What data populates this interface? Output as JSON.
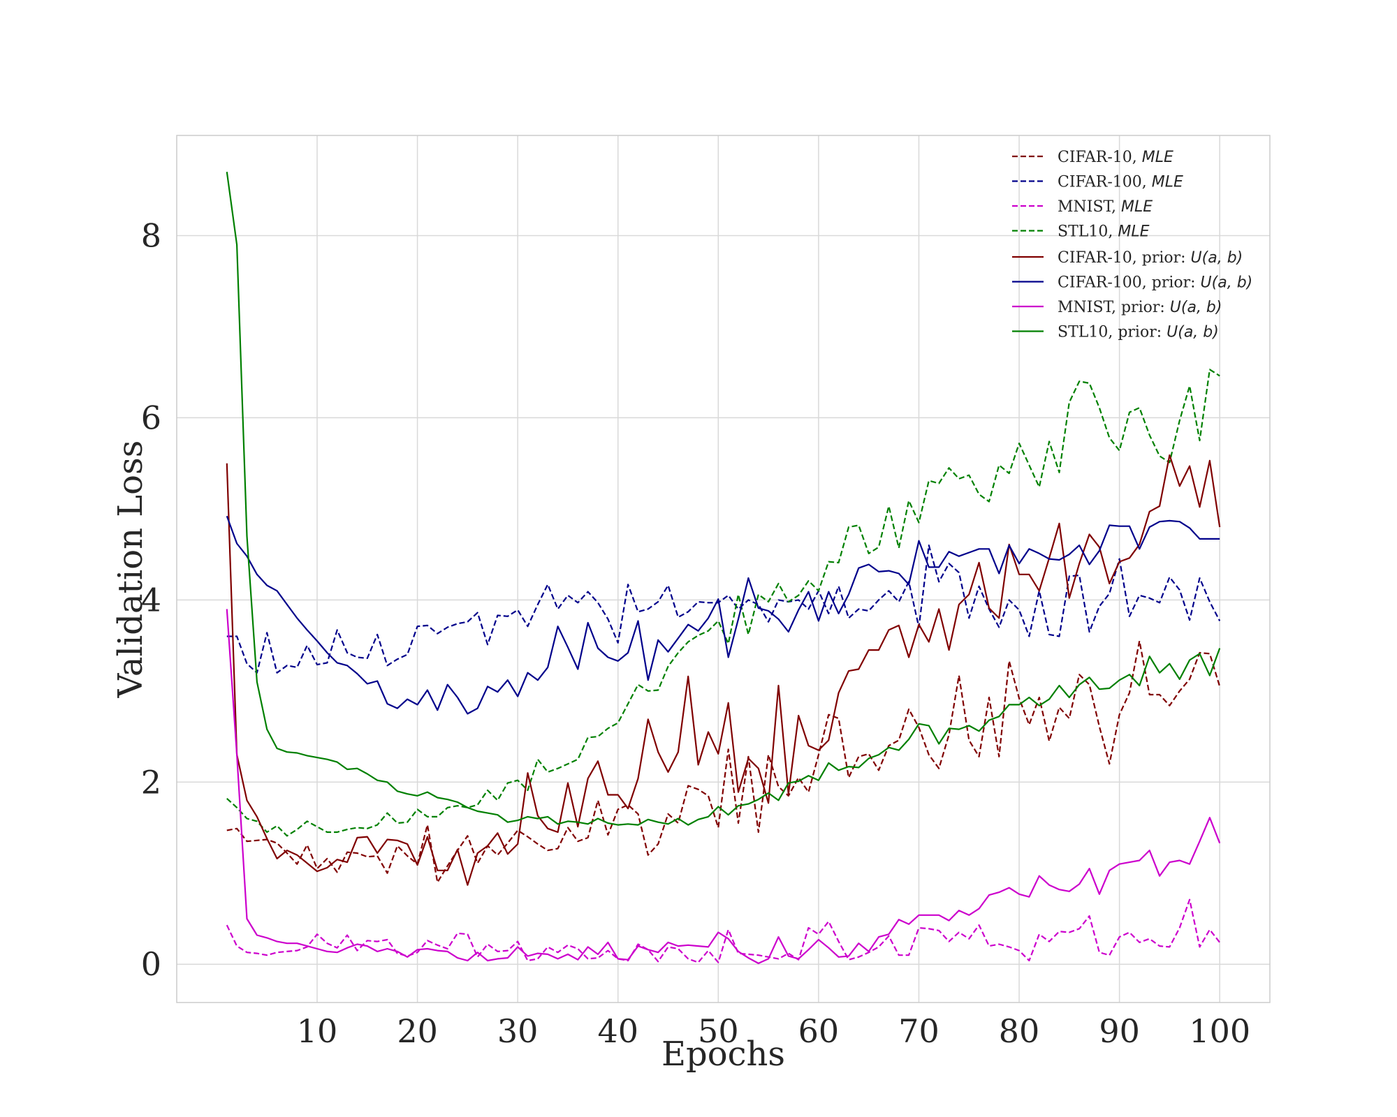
{
  "chart_data": {
    "type": "line",
    "title": "",
    "xlabel": "Epochs",
    "ylabel": "Validation Loss",
    "xlim": [
      -4,
      105
    ],
    "ylim": [
      -0.42,
      9.1
    ],
    "xticks": [
      10,
      20,
      30,
      40,
      50,
      60,
      70,
      80,
      90,
      100
    ],
    "yticks": [
      0,
      2,
      4,
      6,
      8
    ],
    "grid": true,
    "legend_position": "top-right",
    "x_start": 1,
    "x_end": 100,
    "series": [
      {
        "name": "CIFAR-10, MLE",
        "name_plain": "CIFAR-10, ",
        "name_tag": "MLE",
        "color": "#800000",
        "style": "dashed",
        "values": [
          1.47,
          1.49,
          1.35,
          1.36,
          1.37,
          1.33,
          1.22,
          1.1,
          1.31,
          1.05,
          1.16,
          1.01,
          1.23,
          1.22,
          1.18,
          1.19,
          1.0,
          1.3,
          1.19,
          1.1,
          1.53,
          0.9,
          1.08,
          1.25,
          1.41,
          1.11,
          1.3,
          1.2,
          1.33,
          1.47,
          1.4,
          1.32,
          1.25,
          1.27,
          1.5,
          1.35,
          1.39,
          1.8,
          1.42,
          1.7,
          1.75,
          1.65,
          1.2,
          1.32,
          1.65,
          1.55,
          1.96,
          1.92,
          1.85,
          1.5,
          2.36,
          1.55,
          2.28,
          1.45,
          2.3,
          1.95,
          1.85,
          2.05,
          1.89,
          2.3,
          2.74,
          2.7,
          2.05,
          2.28,
          2.31,
          2.13,
          2.4,
          2.46,
          2.8,
          2.6,
          2.3,
          2.15,
          2.52,
          3.17,
          2.46,
          2.28,
          2.93,
          2.28,
          3.33,
          2.92,
          2.63,
          2.93,
          2.45,
          2.82,
          2.7,
          3.18,
          3.07,
          2.61,
          2.2,
          2.74,
          2.98,
          3.55,
          2.96,
          2.96,
          2.84,
          3.0,
          3.13,
          3.42,
          3.41,
          3.05
        ]
      },
      {
        "name": "CIFAR-100, MLE",
        "name_plain": "CIFAR-100, ",
        "name_tag": "MLE",
        "color": "#00008b",
        "style": "dashed",
        "values": [
          3.6,
          3.6,
          3.3,
          3.2,
          3.64,
          3.2,
          3.28,
          3.26,
          3.5,
          3.29,
          3.31,
          3.67,
          3.42,
          3.37,
          3.36,
          3.62,
          3.28,
          3.35,
          3.4,
          3.71,
          3.72,
          3.63,
          3.7,
          3.74,
          3.76,
          3.86,
          3.51,
          3.83,
          3.82,
          3.89,
          3.71,
          3.95,
          4.17,
          3.9,
          4.05,
          3.97,
          4.09,
          3.97,
          3.79,
          3.53,
          4.17,
          3.87,
          3.9,
          3.98,
          4.16,
          3.81,
          3.87,
          3.98,
          3.97,
          3.97,
          4.05,
          3.9,
          4.0,
          3.95,
          3.76,
          4.0,
          3.98,
          4.0,
          3.9,
          4.1,
          3.85,
          4.15,
          3.8,
          3.9,
          3.88,
          4.0,
          4.1,
          3.98,
          4.2,
          3.7,
          4.6,
          4.2,
          4.4,
          4.3,
          3.8,
          4.15,
          3.9,
          3.7,
          4.0,
          3.89,
          3.6,
          4.1,
          3.62,
          3.6,
          4.26,
          4.27,
          3.65,
          3.93,
          4.07,
          4.45,
          3.82,
          4.05,
          4.02,
          3.97,
          4.25,
          4.11,
          3.78,
          4.24,
          3.98,
          3.77
        ]
      },
      {
        "name": "MNIST, MLE",
        "name_plain": "MNIST, ",
        "name_tag": "MLE",
        "color": "#cc00cc",
        "style": "dashed",
        "values": [
          0.43,
          0.2,
          0.13,
          0.12,
          0.1,
          0.13,
          0.14,
          0.15,
          0.19,
          0.33,
          0.23,
          0.18,
          0.32,
          0.15,
          0.26,
          0.25,
          0.27,
          0.12,
          0.09,
          0.13,
          0.26,
          0.21,
          0.17,
          0.34,
          0.33,
          0.08,
          0.22,
          0.14,
          0.15,
          0.25,
          0.04,
          0.06,
          0.19,
          0.13,
          0.21,
          0.17,
          0.06,
          0.07,
          0.15,
          0.06,
          0.04,
          0.22,
          0.16,
          0.03,
          0.19,
          0.17,
          0.06,
          0.02,
          0.15,
          0.02,
          0.38,
          0.12,
          0.11,
          0.1,
          0.08,
          0.06,
          0.12,
          0.05,
          0.4,
          0.33,
          0.47,
          0.25,
          0.05,
          0.08,
          0.13,
          0.19,
          0.31,
          0.1,
          0.1,
          0.4,
          0.39,
          0.37,
          0.25,
          0.35,
          0.28,
          0.43,
          0.2,
          0.22,
          0.19,
          0.15,
          0.04,
          0.33,
          0.25,
          0.36,
          0.35,
          0.39,
          0.53,
          0.13,
          0.1,
          0.3,
          0.35,
          0.24,
          0.28,
          0.2,
          0.19,
          0.4,
          0.71,
          0.19,
          0.38,
          0.24
        ]
      },
      {
        "name": "STL10, MLE",
        "name_plain": "STL10, ",
        "name_tag": "MLE",
        "color": "#008000",
        "style": "dashed",
        "values": [
          1.82,
          1.72,
          1.6,
          1.57,
          1.45,
          1.52,
          1.41,
          1.48,
          1.57,
          1.51,
          1.45,
          1.45,
          1.48,
          1.5,
          1.49,
          1.53,
          1.66,
          1.55,
          1.56,
          1.7,
          1.62,
          1.62,
          1.72,
          1.74,
          1.72,
          1.75,
          1.91,
          1.8,
          1.99,
          2.02,
          1.91,
          2.25,
          2.11,
          2.15,
          2.2,
          2.25,
          2.49,
          2.5,
          2.59,
          2.65,
          2.86,
          3.07,
          3.0,
          3.01,
          3.27,
          3.42,
          3.54,
          3.61,
          3.66,
          3.77,
          3.52,
          4.06,
          3.62,
          4.06,
          3.98,
          4.18,
          3.98,
          4.05,
          4.21,
          4.1,
          4.42,
          4.41,
          4.8,
          4.82,
          4.51,
          4.58,
          5.03,
          4.57,
          5.09,
          4.85,
          5.31,
          5.28,
          5.45,
          5.33,
          5.37,
          5.16,
          5.08,
          5.48,
          5.39,
          5.72,
          5.48,
          5.24,
          5.74,
          5.4,
          6.17,
          6.4,
          6.38,
          6.11,
          5.78,
          5.64,
          6.06,
          6.11,
          5.81,
          5.58,
          5.51,
          5.97,
          6.35,
          5.75,
          6.53,
          6.46
        ]
      },
      {
        "name": "CIFAR-10, prior: U(a, b)",
        "name_plain": "CIFAR-10, prior: ",
        "name_tag": "U(a, b)",
        "color": "#800000",
        "style": "solid",
        "values": [
          5.5,
          2.3,
          1.8,
          1.62,
          1.38,
          1.16,
          1.25,
          1.2,
          1.11,
          1.02,
          1.06,
          1.15,
          1.12,
          1.39,
          1.4,
          1.22,
          1.37,
          1.36,
          1.32,
          1.09,
          1.4,
          1.03,
          1.03,
          1.26,
          0.87,
          1.22,
          1.3,
          1.44,
          1.21,
          1.32,
          2.1,
          1.63,
          1.49,
          1.45,
          1.99,
          1.51,
          2.04,
          2.23,
          1.86,
          1.86,
          1.71,
          2.04,
          2.69,
          2.33,
          2.11,
          2.33,
          3.16,
          2.19,
          2.55,
          2.31,
          2.87,
          1.89,
          2.26,
          2.15,
          1.77,
          3.06,
          1.87,
          2.73,
          2.4,
          2.35,
          2.46,
          2.98,
          3.22,
          3.24,
          3.45,
          3.45,
          3.67,
          3.72,
          3.37,
          3.73,
          3.54,
          3.9,
          3.45,
          3.95,
          4.06,
          4.41,
          3.91,
          3.8,
          4.61,
          4.28,
          4.28,
          4.1,
          4.46,
          4.84,
          4.02,
          4.4,
          4.72,
          4.58,
          4.18,
          4.42,
          4.46,
          4.61,
          4.97,
          5.03,
          5.59,
          5.25,
          5.47,
          5.02,
          5.53,
          4.8
        ]
      },
      {
        "name": "CIFAR-100, prior: U(a, b)",
        "name_plain": "CIFAR-100, prior: ",
        "name_tag": "U(a, b)",
        "color": "#00008b",
        "style": "solid",
        "values": [
          4.92,
          4.62,
          4.48,
          4.28,
          4.16,
          4.1,
          3.95,
          3.8,
          3.67,
          3.55,
          3.42,
          3.31,
          3.28,
          3.19,
          3.08,
          3.11,
          2.86,
          2.81,
          2.91,
          2.85,
          3.01,
          2.79,
          3.07,
          2.93,
          2.75,
          2.81,
          3.05,
          2.99,
          3.12,
          2.94,
          3.2,
          3.12,
          3.26,
          3.71,
          3.48,
          3.24,
          3.75,
          3.47,
          3.37,
          3.33,
          3.42,
          3.77,
          3.12,
          3.56,
          3.43,
          3.58,
          3.73,
          3.66,
          3.8,
          4.01,
          3.37,
          3.79,
          4.24,
          3.91,
          3.88,
          3.79,
          3.65,
          3.89,
          4.09,
          3.77,
          4.09,
          3.85,
          4.06,
          4.35,
          4.39,
          4.31,
          4.32,
          4.29,
          4.17,
          4.65,
          4.36,
          4.36,
          4.53,
          4.48,
          4.52,
          4.56,
          4.56,
          4.29,
          4.6,
          4.4,
          4.56,
          4.51,
          4.45,
          4.44,
          4.5,
          4.6,
          4.39,
          4.54,
          4.82,
          4.81,
          4.81,
          4.56,
          4.8,
          4.86,
          4.87,
          4.86,
          4.79,
          4.67,
          4.67,
          4.67
        ]
      },
      {
        "name": "MNIST, prior: U(a, b)",
        "name_plain": "MNIST, prior: ",
        "name_tag": "U(a, b)",
        "color": "#cc00cc",
        "style": "solid",
        "values": [
          3.9,
          2.3,
          0.5,
          0.32,
          0.29,
          0.25,
          0.23,
          0.23,
          0.2,
          0.17,
          0.14,
          0.13,
          0.18,
          0.22,
          0.2,
          0.14,
          0.17,
          0.14,
          0.08,
          0.16,
          0.17,
          0.15,
          0.14,
          0.07,
          0.04,
          0.13,
          0.04,
          0.06,
          0.07,
          0.19,
          0.09,
          0.12,
          0.11,
          0.06,
          0.11,
          0.05,
          0.19,
          0.11,
          0.24,
          0.06,
          0.05,
          0.2,
          0.16,
          0.13,
          0.24,
          0.2,
          0.21,
          0.2,
          0.19,
          0.35,
          0.28,
          0.14,
          0.07,
          0.01,
          0.06,
          0.3,
          0.09,
          0.06,
          0.16,
          0.27,
          0.18,
          0.08,
          0.09,
          0.23,
          0.14,
          0.3,
          0.33,
          0.49,
          0.44,
          0.54,
          0.54,
          0.54,
          0.48,
          0.59,
          0.54,
          0.61,
          0.76,
          0.79,
          0.84,
          0.77,
          0.74,
          0.97,
          0.87,
          0.82,
          0.8,
          0.88,
          1.05,
          0.77,
          1.03,
          1.1,
          1.12,
          1.14,
          1.25,
          0.97,
          1.12,
          1.14,
          1.1,
          1.35,
          1.61,
          1.33
        ]
      },
      {
        "name": "STL10, prior: U(a, b)",
        "name_plain": "STL10, prior: ",
        "name_tag": "U(a, b)",
        "color": "#008000",
        "style": "solid",
        "values": [
          8.7,
          7.9,
          4.7,
          3.1,
          2.58,
          2.37,
          2.33,
          2.32,
          2.29,
          2.27,
          2.25,
          2.22,
          2.14,
          2.15,
          2.09,
          2.02,
          2.0,
          1.9,
          1.87,
          1.85,
          1.89,
          1.83,
          1.81,
          1.78,
          1.72,
          1.68,
          1.66,
          1.64,
          1.56,
          1.58,
          1.62,
          1.6,
          1.62,
          1.54,
          1.57,
          1.56,
          1.54,
          1.6,
          1.55,
          1.53,
          1.54,
          1.53,
          1.59,
          1.56,
          1.54,
          1.6,
          1.53,
          1.59,
          1.62,
          1.73,
          1.64,
          1.74,
          1.76,
          1.81,
          1.88,
          1.8,
          1.99,
          2.01,
          2.07,
          2.02,
          2.21,
          2.13,
          2.17,
          2.16,
          2.26,
          2.3,
          2.38,
          2.35,
          2.47,
          2.64,
          2.62,
          2.42,
          2.59,
          2.58,
          2.62,
          2.56,
          2.68,
          2.72,
          2.85,
          2.85,
          2.93,
          2.84,
          2.91,
          3.06,
          2.93,
          3.07,
          3.15,
          3.02,
          3.03,
          3.12,
          3.18,
          3.06,
          3.38,
          3.2,
          3.3,
          3.13,
          3.34,
          3.41,
          3.17,
          3.47
        ]
      }
    ]
  }
}
